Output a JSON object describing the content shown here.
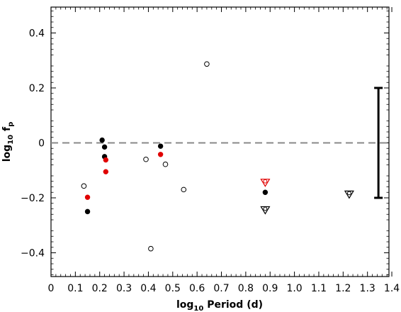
{
  "chart_data": {
    "type": "scatter",
    "xlabel": "log10 Period (d)",
    "ylabel": "log10 fp",
    "xlim": [
      0,
      1.4
    ],
    "ylim": [
      -0.5,
      0.5
    ],
    "xticks": [
      "0",
      "0.1",
      "0.2",
      "0.3",
      "0.4",
      "0.5",
      "0.6",
      "0.7",
      "0.8",
      "0.9",
      "1.0",
      "1.1",
      "1.2",
      "1.3",
      "1.4"
    ],
    "yticks": [
      "0.4",
      "0.2",
      "0",
      "−0.2",
      "−0.4"
    ],
    "ytick_values": [
      0.4,
      0.2,
      0,
      -0.2,
      -0.4
    ],
    "reference_line": {
      "y": 0,
      "style": "dashed",
      "color": "#888888"
    },
    "errorbar": {
      "x": 1.345,
      "y_low": -0.2,
      "y_high": 0.2,
      "color": "#000000"
    },
    "series": [
      {
        "marker": "filled-circle",
        "color": "#000000",
        "points": [
          [
            0.21,
            0.01
          ],
          [
            0.22,
            -0.015
          ],
          [
            0.22,
            -0.05
          ],
          [
            0.15,
            -0.25
          ],
          [
            0.45,
            -0.012
          ],
          [
            0.88,
            -0.18
          ]
        ]
      },
      {
        "marker": "filled-circle",
        "color": "#e00000",
        "points": [
          [
            0.225,
            -0.062
          ],
          [
            0.225,
            -0.105
          ],
          [
            0.15,
            -0.198
          ],
          [
            0.45,
            -0.042
          ]
        ]
      },
      {
        "marker": "open-circle",
        "color": "#000000",
        "points": [
          [
            0.135,
            -0.157
          ],
          [
            0.39,
            -0.06
          ],
          [
            0.47,
            -0.078
          ],
          [
            0.545,
            -0.17
          ],
          [
            0.64,
            0.287
          ],
          [
            0.41,
            -0.385
          ]
        ]
      },
      {
        "marker": "open-triangle-down",
        "color": "#000000",
        "points": [
          [
            0.88,
            -0.245
          ],
          [
            1.225,
            -0.188
          ]
        ]
      },
      {
        "marker": "open-triangle-down",
        "color": "#e00000",
        "points": [
          [
            0.88,
            -0.145
          ]
        ]
      }
    ]
  }
}
